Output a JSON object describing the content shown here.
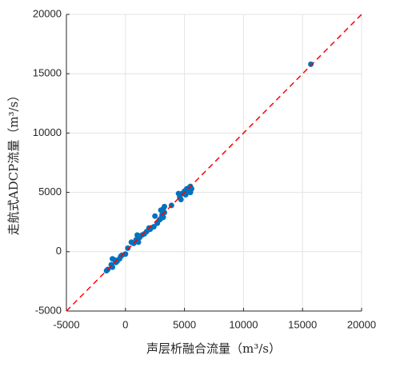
{
  "chart_data": {
    "type": "scatter",
    "x_label": "声层析融合流量（m³/s）",
    "y_label": "走航式ADCP流量（m³/s）",
    "xlim": [
      -5000,
      20000
    ],
    "ylim": [
      -5000,
      20000
    ],
    "xticks": [
      -5000,
      0,
      5000,
      10000,
      15000,
      20000
    ],
    "yticks": [
      -5000,
      0,
      5000,
      10000,
      15000,
      20000
    ],
    "grid": true,
    "color": "#0072bd",
    "reference_line": {
      "x": [
        -5000,
        20000
      ],
      "y": [
        -5000,
        20000
      ],
      "color": "#ff0000"
    },
    "x": [
      15700,
      5000,
      5200,
      5400,
      5500,
      5300,
      5600,
      5500,
      4800,
      4600,
      4700,
      5100,
      4500,
      3900,
      3300,
      3200,
      3000,
      3300,
      3100,
      3000,
      2900,
      3200,
      2700,
      2400,
      2500,
      2000,
      2100,
      1800,
      1600,
      1400,
      1200,
      1000,
      900,
      1100,
      700,
      500,
      200,
      0,
      -300,
      -500,
      -700,
      -900,
      -1100,
      -1200,
      -1100,
      -1500,
      -1600,
      -800,
      -400
    ],
    "y": [
      15800,
      5100,
      5300,
      5400,
      5500,
      5200,
      5300,
      5000,
      4900,
      4600,
      4400,
      4800,
      4900,
      3900,
      3800,
      3600,
      3500,
      3300,
      3100,
      2800,
      2700,
      2900,
      2400,
      2100,
      3000,
      2000,
      1900,
      1700,
      1500,
      1400,
      1200,
      1400,
      1000,
      800,
      700,
      800,
      300,
      -200,
      -300,
      -600,
      -800,
      -700,
      -600,
      -1100,
      -1300,
      -1500,
      -1600,
      -900,
      -400
    ]
  }
}
